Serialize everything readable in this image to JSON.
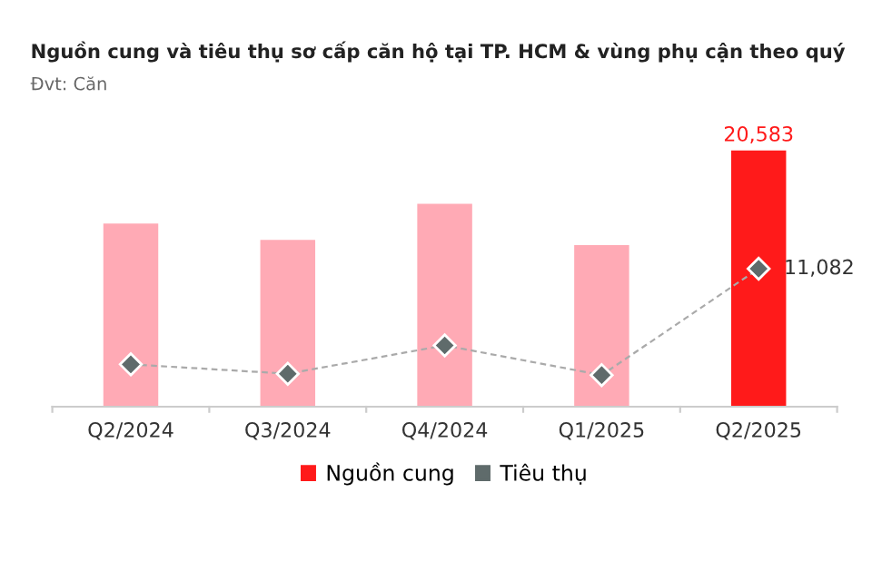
{
  "chart_data": {
    "type": "bar",
    "title": "Nguồn cung và tiêu thụ sơ cấp căn hộ tại TP. HCM & vùng phụ cận theo quý",
    "subtitle": "Đvt: Căn",
    "categories": [
      "Q2/2024",
      "Q3/2024",
      "Q4/2024",
      "Q1/2025",
      "Q2/2025"
    ],
    "series": [
      {
        "name": "Nguồn cung",
        "color": "#ff1a1a",
        "colors": [
          "#ffaab5",
          "#ffaab5",
          "#ffaab5",
          "#ffaab5",
          "#ff1a1a"
        ],
        "values": [
          14700,
          13400,
          16300,
          12970,
          20583
        ],
        "value_labels": [
          null,
          null,
          null,
          null,
          "20,583"
        ]
      },
      {
        "name": "Tiêu thụ",
        "type": "line",
        "color": "#5f6b6b",
        "values": [
          3400,
          2650,
          4920,
          2540,
          11082
        ],
        "value_labels": [
          null,
          null,
          null,
          null,
          "11,082"
        ],
        "marker": "diamond",
        "line_style": "dashed"
      }
    ],
    "legend": "bottom",
    "grid": false
  }
}
